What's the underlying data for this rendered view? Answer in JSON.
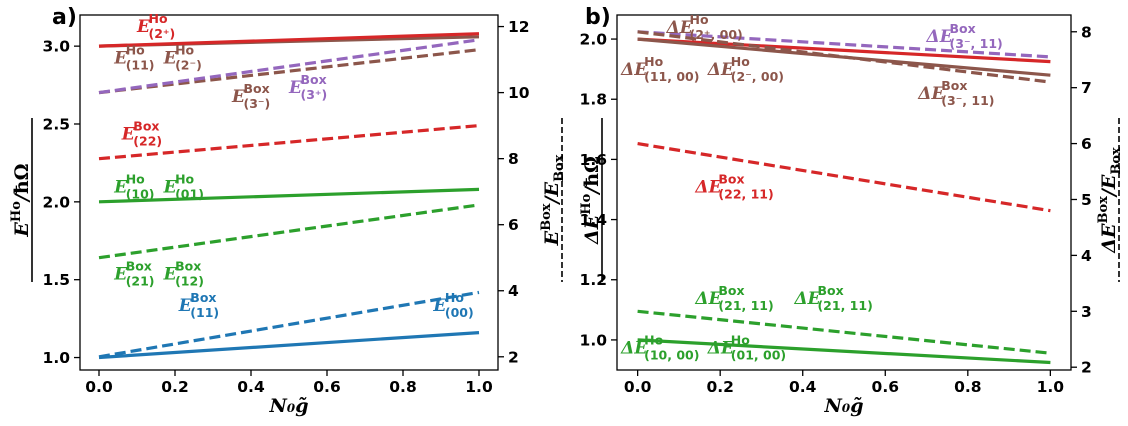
{
  "chart_data": [
    {
      "panel": "a)",
      "type": "line",
      "xlabel": "N₀g̃",
      "ylabel_left": "E^Ho/ħΩ",
      "ylabel_right": "E^Box/E_Box",
      "xlim": [
        -0.05,
        1.05
      ],
      "ylim_left": [
        0.92,
        3.2
      ],
      "ylim_right": [
        1.6,
        12.35
      ],
      "x_ticks": [
        "0.0",
        "0.2",
        "0.4",
        "0.6",
        "0.8",
        "1.0"
      ],
      "y_ticks_left": [
        "1.0",
        "1.5",
        "2.0",
        "2.5",
        "3.0"
      ],
      "y_ticks_right": [
        "2",
        "4",
        "6",
        "8",
        "10",
        "12"
      ],
      "series": [
        {
          "axis": "left",
          "style": "solid",
          "color": "#1f77b4",
          "x": [
            0,
            1
          ],
          "y": [
            1.0,
            1.16
          ]
        },
        {
          "axis": "left",
          "style": "solid",
          "color": "#2ca02c",
          "x": [
            0,
            1
          ],
          "y": [
            2.0,
            2.08
          ]
        },
        {
          "axis": "left",
          "style": "solid",
          "color": "#8c564b",
          "x": [
            0,
            1
          ],
          "y": [
            3.0,
            3.06
          ]
        },
        {
          "axis": "left",
          "style": "solid",
          "color": "#d62728",
          "x": [
            0,
            1
          ],
          "y": [
            3.0,
            3.08
          ]
        },
        {
          "axis": "right",
          "style": "dashed",
          "color": "#1f77b4",
          "x": [
            0,
            1
          ],
          "y": [
            2.0,
            3.95
          ]
        },
        {
          "axis": "right",
          "style": "dashed",
          "color": "#2ca02c",
          "x": [
            0,
            1
          ],
          "y": [
            5.0,
            6.6
          ]
        },
        {
          "axis": "right",
          "style": "dashed",
          "color": "#d62728",
          "x": [
            0,
            1
          ],
          "y": [
            8.0,
            9.0
          ]
        },
        {
          "axis": "right",
          "style": "dashed",
          "color": "#8c564b",
          "x": [
            0,
            1
          ],
          "y": [
            10.0,
            11.3
          ]
        },
        {
          "axis": "right",
          "style": "dashed",
          "color": "#9467bd",
          "x": [
            0,
            1
          ],
          "y": [
            10.0,
            11.6
          ]
        }
      ],
      "annotations": [
        {
          "color": "#d62728",
          "base": "E",
          "sup": "Ho",
          "sub": "(2⁺)"
        },
        {
          "color": "#8c564b",
          "base": "E",
          "sup": "Ho",
          "sub": "(11)"
        },
        {
          "color": "#8c564b",
          "base": "E",
          "sup": "Ho",
          "sub": "(2⁻)"
        },
        {
          "color": "#8c564b",
          "base": "E",
          "sup": "Box",
          "sub": "(3⁻)"
        },
        {
          "color": "#9467bd",
          "base": "E",
          "sup": "Box",
          "sub": "(3⁺)"
        },
        {
          "color": "#d62728",
          "base": "E",
          "sup": "Box",
          "sub": "(22)"
        },
        {
          "color": "#2ca02c",
          "base": "E",
          "sup": "Ho",
          "sub": "(10)"
        },
        {
          "color": "#2ca02c",
          "base": "E",
          "sup": "Ho",
          "sub": "(01)"
        },
        {
          "color": "#2ca02c",
          "base": "E",
          "sup": "Box",
          "sub": "(21)"
        },
        {
          "color": "#2ca02c",
          "base": "E",
          "sup": "Box",
          "sub": "(12)"
        },
        {
          "color": "#1f77b4",
          "base": "E",
          "sup": "Box",
          "sub": "(11)"
        },
        {
          "color": "#1f77b4",
          "base": "E",
          "sup": "Ho",
          "sub": "(00)"
        }
      ]
    },
    {
      "panel": "b)",
      "type": "line",
      "xlabel": "N₀g̃",
      "ylabel_left": "ΔE^Ho/ħΩ",
      "ylabel_right": "ΔE^Box/E_Box",
      "xlim": [
        -0.05,
        1.05
      ],
      "ylim_left": [
        0.9,
        2.08
      ],
      "ylim_right": [
        1.95,
        8.3
      ],
      "x_ticks": [
        "0.0",
        "0.2",
        "0.4",
        "0.6",
        "0.8",
        "1.0"
      ],
      "y_ticks_left": [
        "1.0",
        "1.2",
        "1.4",
        "1.6",
        "1.8",
        "2.0"
      ],
      "y_ticks_right": [
        "2",
        "3",
        "4",
        "5",
        "6",
        "7",
        "8"
      ],
      "series": [
        {
          "axis": "left",
          "style": "solid",
          "color": "#d62728",
          "x": [
            0,
            1
          ],
          "y": [
            2.0,
            1.925
          ]
        },
        {
          "axis": "left",
          "style": "solid",
          "color": "#8c564b",
          "x": [
            0,
            1
          ],
          "y": [
            2.0,
            1.88
          ]
        },
        {
          "axis": "left",
          "style": "solid",
          "color": "#2ca02c",
          "x": [
            0,
            1
          ],
          "y": [
            1.0,
            0.925
          ]
        },
        {
          "axis": "right",
          "style": "dashed",
          "color": "#9467bd",
          "x": [
            0,
            1
          ],
          "y": [
            8.0,
            7.55
          ]
        },
        {
          "axis": "right",
          "style": "dashed",
          "color": "#8c564b",
          "x": [
            0,
            1
          ],
          "y": [
            8.0,
            7.1
          ]
        },
        {
          "axis": "right",
          "style": "dashed",
          "color": "#d62728",
          "x": [
            0,
            1
          ],
          "y": [
            6.0,
            4.8
          ]
        },
        {
          "axis": "right",
          "style": "dashed",
          "color": "#2ca02c",
          "x": [
            0,
            1
          ],
          "y": [
            3.0,
            2.25
          ]
        }
      ],
      "annotations": [
        {
          "color": "#8c564b",
          "base": "ΔE",
          "sup": "Ho",
          "sub": "(2⁺, 00)"
        },
        {
          "color": "#9467bd",
          "base": "ΔE",
          "sup": "Box",
          "sub": "(3⁻, 11)"
        },
        {
          "color": "#8c564b",
          "base": "ΔE",
          "sup": "Ho",
          "sub": "(11, 00)"
        },
        {
          "color": "#8c564b",
          "base": "ΔE",
          "sup": "Ho",
          "sub": "(2⁻, 00)"
        },
        {
          "color": "#8c564b",
          "base": "ΔE",
          "sup": "Box",
          "sub": "(3⁻, 11)"
        },
        {
          "color": "#d62728",
          "base": "ΔE",
          "sup": "Box",
          "sub": "(22, 11)"
        },
        {
          "color": "#2ca02c",
          "base": "ΔE",
          "sup": "Box",
          "sub": "(21, 11)"
        },
        {
          "color": "#2ca02c",
          "base": "ΔE",
          "sup": "Box",
          "sub": "(21, 11)"
        },
        {
          "color": "#2ca02c",
          "base": "ΔE",
          "sup": "Ho",
          "sub": "(10, 00)"
        },
        {
          "color": "#2ca02c",
          "base": "ΔE",
          "sup": "Ho",
          "sub": "(01, 00)"
        }
      ]
    }
  ]
}
